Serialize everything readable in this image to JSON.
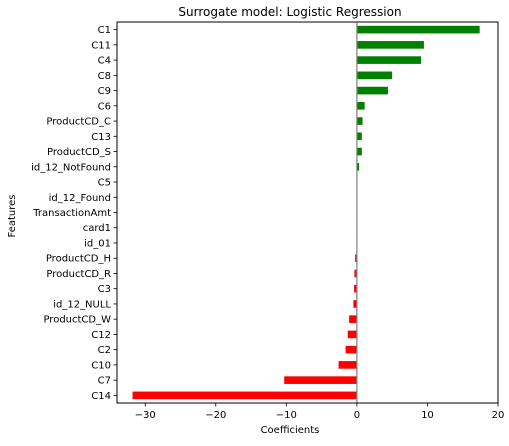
{
  "chart_data": {
    "type": "bar",
    "orientation": "horizontal",
    "title": "Surrogate model: Logistic Regression",
    "xlabel": "Coefficients",
    "ylabel": "Features",
    "xlim": [
      -34,
      20
    ],
    "xticks": [
      -30,
      -20,
      -10,
      0,
      10,
      20
    ],
    "grid": false,
    "legend": "none",
    "categories": [
      "C1",
      "C11",
      "C4",
      "C8",
      "C9",
      "C6",
      "ProductCD_C",
      "C13",
      "ProductCD_S",
      "id_12_NotFound",
      "C5",
      "id_12_Found",
      "TransactionAmt",
      "card1",
      "id_01",
      "ProductCD_H",
      "ProductCD_R",
      "C3",
      "id_12_NULL",
      "ProductCD_W",
      "C12",
      "C2",
      "C10",
      "C7",
      "C14"
    ],
    "values": [
      17.4,
      9.5,
      9.1,
      5.0,
      4.4,
      1.1,
      0.8,
      0.7,
      0.7,
      0.3,
      0.05,
      0.05,
      0.03,
      0.02,
      -0.05,
      -0.25,
      -0.35,
      -0.4,
      -0.5,
      -1.1,
      -1.3,
      -1.6,
      -2.6,
      -10.3,
      -31.8
    ],
    "colors": {
      "positive": "#008000",
      "negative": "#ff0000",
      "zero_line": "#808080"
    }
  }
}
